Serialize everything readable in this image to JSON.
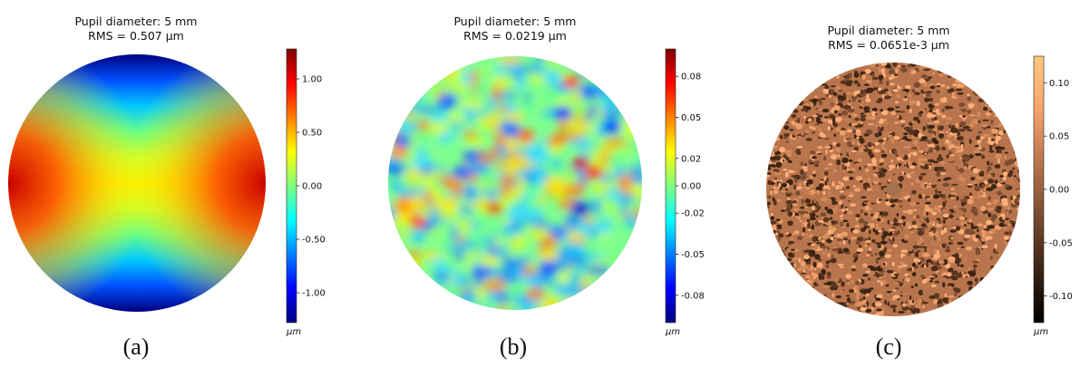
{
  "chart_data": [
    {
      "type": "heatmap",
      "title": "Pupil diameter: 5 mm",
      "subtitle": "RMS = 0.507 μm",
      "caption": "(a)",
      "colormap": "jet",
      "pattern": "astigmatism",
      "colorbar": {
        "label": "μm",
        "range": [
          -1.28,
          1.28
        ],
        "ticks": [
          1.0,
          0.5,
          0.0,
          -0.5,
          -1.0
        ],
        "tick_labels": [
          "1.00",
          "0.50",
          "0.00",
          "-0.50",
          "-1.00"
        ]
      }
    },
    {
      "type": "heatmap",
      "title": "Pupil diameter: 5 mm",
      "subtitle": "RMS = 0.0219 μm",
      "caption": "(b)",
      "colormap": "jet",
      "pattern": "random",
      "colorbar": {
        "label": "μm",
        "range": [
          -0.1,
          0.1
        ],
        "ticks": [
          0.08,
          0.05,
          0.02,
          0.0,
          -0.02,
          -0.05,
          -0.08
        ],
        "tick_labels": [
          "0.08",
          "0.05",
          "0.02",
          "0.00",
          "-0.02",
          "-0.05",
          "-0.08"
        ]
      }
    },
    {
      "type": "heatmap",
      "title": "Pupil diameter: 5 mm",
      "subtitle": "RMS = 0.0651e-3 μm",
      "caption": "(c)",
      "colormap": "copper",
      "pattern": "fine-noise",
      "colorbar": {
        "label": "μm",
        "range": [
          -0.125,
          0.125
        ],
        "ticks": [
          0.1,
          0.05,
          0.0,
          -0.05,
          -0.1
        ],
        "tick_labels": [
          "0.10",
          "0.05",
          "0.00",
          "-0.05",
          "-0.10"
        ]
      }
    }
  ]
}
